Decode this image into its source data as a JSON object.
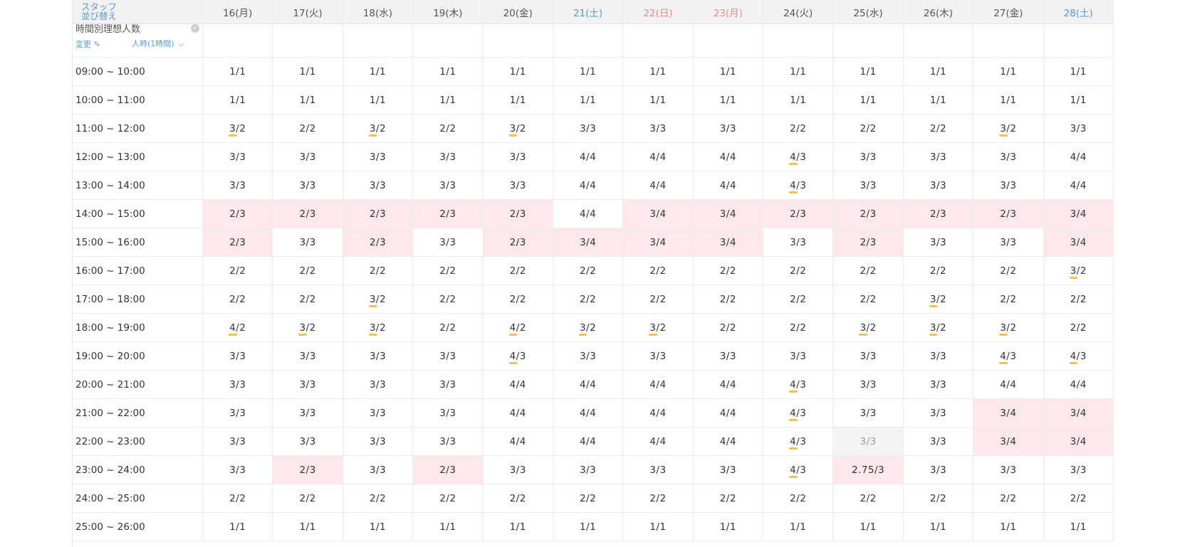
{
  "header": {
    "corner_line1": "スタッフ",
    "corner_line2": "並び替え",
    "days": [
      {
        "label": "16(月)",
        "type": "weekday"
      },
      {
        "label": "17(火)",
        "type": "weekday"
      },
      {
        "label": "18(水)",
        "type": "weekday"
      },
      {
        "label": "19(木)",
        "type": "weekday"
      },
      {
        "label": "20(金)",
        "type": "weekday"
      },
      {
        "label": "21(土)",
        "type": "sat"
      },
      {
        "label": "22(日)",
        "type": "hol"
      },
      {
        "label": "23(月)",
        "type": "hol"
      },
      {
        "label": "24(火)",
        "type": "weekday"
      },
      {
        "label": "25(水)",
        "type": "weekday"
      },
      {
        "label": "26(木)",
        "type": "weekday"
      },
      {
        "label": "27(金)",
        "type": "weekday"
      },
      {
        "label": "28(土)",
        "type": "sat"
      }
    ]
  },
  "ideal": {
    "title": "時間別理想人数",
    "edit_label": "変更",
    "unit_label": "人時(1時間)"
  },
  "colors": {
    "accent_blue": "#5b9bd5",
    "holiday_red": "#ee8a8a",
    "shortage_pink": "#fde8ea",
    "over_underline": "#f2c14e"
  },
  "rows": [
    {
      "time": "09:00 ~ 10:00",
      "cells": [
        "1/1",
        "1/1",
        "1/1",
        "1/1",
        "1/1",
        "1/1",
        "1/1",
        "1/1",
        "1/1",
        "1/1",
        "1/1",
        "1/1",
        "1/1"
      ],
      "status": "nnnnnnnnnnnnn"
    },
    {
      "time": "10:00 ~ 11:00",
      "cells": [
        "1/1",
        "1/1",
        "1/1",
        "1/1",
        "1/1",
        "1/1",
        "1/1",
        "1/1",
        "1/1",
        "1/1",
        "1/1",
        "1/1",
        "1/1"
      ],
      "status": "nnnnnnnnnnnnn"
    },
    {
      "time": "11:00 ~ 12:00",
      "cells": [
        "3/2",
        "2/2",
        "3/2",
        "2/2",
        "3/2",
        "3/3",
        "3/3",
        "3/3",
        "2/2",
        "2/2",
        "2/2",
        "3/2",
        "3/3"
      ],
      "status": "unununnnnnnun"
    },
    {
      "time": "12:00 ~ 13:00",
      "cells": [
        "3/3",
        "3/3",
        "3/3",
        "3/3",
        "3/3",
        "4/4",
        "4/4",
        "4/4",
        "4/3",
        "3/3",
        "3/3",
        "3/3",
        "4/4"
      ],
      "status": "nnnnnnnnunnnn"
    },
    {
      "time": "13:00 ~ 14:00",
      "cells": [
        "3/3",
        "3/3",
        "3/3",
        "3/3",
        "3/3",
        "4/4",
        "4/4",
        "4/4",
        "4/3",
        "3/3",
        "3/3",
        "3/3",
        "4/4"
      ],
      "status": "nnnnnnnnunnnn"
    },
    {
      "time": "14:00 ~ 15:00",
      "cells": [
        "2/3",
        "2/3",
        "2/3",
        "2/3",
        "2/3",
        "4/4",
        "3/4",
        "3/4",
        "2/3",
        "2/3",
        "2/3",
        "2/3",
        "3/4"
      ],
      "status": "pppppnppppppp"
    },
    {
      "time": "15:00 ~ 16:00",
      "cells": [
        "2/3",
        "3/3",
        "2/3",
        "3/3",
        "2/3",
        "3/4",
        "3/4",
        "3/4",
        "3/3",
        "2/3",
        "3/3",
        "3/3",
        "3/4"
      ],
      "status": "pnpnppppnpnnp"
    },
    {
      "time": "16:00 ~ 17:00",
      "cells": [
        "2/2",
        "2/2",
        "2/2",
        "2/2",
        "2/2",
        "2/2",
        "2/2",
        "2/2",
        "2/2",
        "2/2",
        "2/2",
        "2/2",
        "3/2"
      ],
      "status": "nnnnnnnnnnnnu"
    },
    {
      "time": "17:00 ~ 18:00",
      "cells": [
        "2/2",
        "2/2",
        "3/2",
        "2/2",
        "2/2",
        "2/2",
        "2/2",
        "2/2",
        "2/2",
        "2/2",
        "3/2",
        "2/2",
        "2/2"
      ],
      "status": "nnunnnnnnnunn"
    },
    {
      "time": "18:00 ~ 19:00",
      "cells": [
        "4/2",
        "3/2",
        "3/2",
        "2/2",
        "4/2",
        "3/2",
        "3/2",
        "2/2",
        "2/2",
        "3/2",
        "3/2",
        "3/2",
        "2/2"
      ],
      "status": "uuunuuunnuuun"
    },
    {
      "time": "19:00 ~ 20:00",
      "cells": [
        "3/3",
        "3/3",
        "3/3",
        "3/3",
        "4/3",
        "3/3",
        "3/3",
        "3/3",
        "3/3",
        "3/3",
        "3/3",
        "4/3",
        "4/3"
      ],
      "status": "nnnnunnnnnnuu"
    },
    {
      "time": "20:00 ~ 21:00",
      "cells": [
        "3/3",
        "3/3",
        "3/3",
        "3/3",
        "4/4",
        "4/4",
        "4/4",
        "4/4",
        "4/3",
        "3/3",
        "3/3",
        "4/4",
        "4/4"
      ],
      "status": "nnnnnnnnunnnn"
    },
    {
      "time": "21:00 ~ 22:00",
      "cells": [
        "3/3",
        "3/3",
        "3/3",
        "3/3",
        "4/4",
        "4/4",
        "4/4",
        "4/4",
        "4/3",
        "3/3",
        "3/3",
        "3/4",
        "3/4"
      ],
      "status": "nnnnnnnnunnpp"
    },
    {
      "time": "22:00 ~ 23:00",
      "cells": [
        "3/3",
        "3/3",
        "3/3",
        "3/3",
        "4/4",
        "4/4",
        "4/4",
        "4/4",
        "4/3",
        "3/3",
        "3/3",
        "3/4",
        "3/4"
      ],
      "status": "nnnnnnnnugnpp"
    },
    {
      "time": "23:00 ~ 24:00",
      "cells": [
        "3/3",
        "2/3",
        "3/3",
        "2/3",
        "3/3",
        "3/3",
        "3/3",
        "3/3",
        "4/3",
        "2.75/3",
        "3/3",
        "3/3",
        "3/3"
      ],
      "status": "npnpnnnnupnnn"
    },
    {
      "time": "24:00 ~ 25:00",
      "cells": [
        "2/2",
        "2/2",
        "2/2",
        "2/2",
        "2/2",
        "2/2",
        "2/2",
        "2/2",
        "2/2",
        "2/2",
        "2/2",
        "2/2",
        "2/2"
      ],
      "status": "nnnnnnnnnnnnn"
    },
    {
      "time": "25:00 ~ 26:00",
      "cells": [
        "1/1",
        "1/1",
        "1/1",
        "1/1",
        "1/1",
        "1/1",
        "1/1",
        "1/1",
        "1/1",
        "1/1",
        "1/1",
        "1/1",
        "1/1"
      ],
      "status": "nnnnnnnnnnnnn"
    }
  ]
}
